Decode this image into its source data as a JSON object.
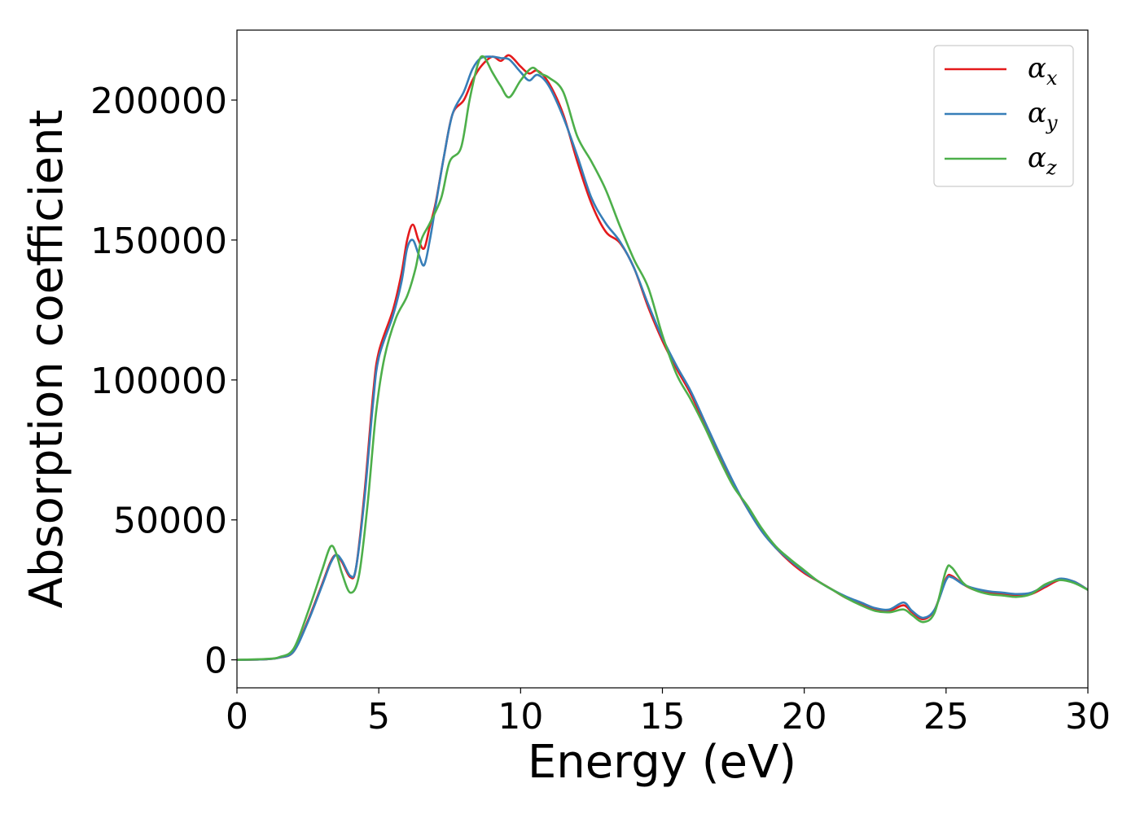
{
  "chart_data": {
    "type": "line",
    "title": "",
    "xlabel": "Energy (eV)",
    "ylabel": "Absorption coefficient",
    "xlim": [
      0,
      30
    ],
    "ylim": [
      -10000,
      225000
    ],
    "xticks": [
      0,
      5,
      10,
      15,
      20,
      25,
      30
    ],
    "xtick_labels": [
      "0",
      "5",
      "10",
      "15",
      "20",
      "25",
      "30"
    ],
    "yticks": [
      0,
      50000,
      100000,
      150000,
      200000
    ],
    "ytick_labels": [
      "0",
      "50000",
      "100000",
      "150000",
      "200000"
    ],
    "grid": false,
    "legend_position": "top-right",
    "series": [
      {
        "name": "α",
        "sub": "x",
        "color": "#e41a1c",
        "points": [
          [
            0,
            0
          ],
          [
            1,
            200
          ],
          [
            1.5,
            800
          ],
          [
            2,
            3000
          ],
          [
            2.5,
            14000
          ],
          [
            3,
            27000
          ],
          [
            3.3,
            35000
          ],
          [
            3.5,
            37500
          ],
          [
            3.7,
            35000
          ],
          [
            4.0,
            29500
          ],
          [
            4.2,
            33000
          ],
          [
            4.5,
            60000
          ],
          [
            4.8,
            95000
          ],
          [
            5.0,
            110000
          ],
          [
            5.5,
            125000
          ],
          [
            5.8,
            138000
          ],
          [
            6.0,
            150000
          ],
          [
            6.2,
            155500
          ],
          [
            6.4,
            150000
          ],
          [
            6.6,
            147000
          ],
          [
            6.8,
            155000
          ],
          [
            7.0,
            163000
          ],
          [
            7.3,
            180000
          ],
          [
            7.6,
            195000
          ],
          [
            8.0,
            200000
          ],
          [
            8.3,
            207000
          ],
          [
            8.6,
            212000
          ],
          [
            9.0,
            215500
          ],
          [
            9.3,
            214000
          ],
          [
            9.6,
            216000
          ],
          [
            10.0,
            212000
          ],
          [
            10.3,
            209500
          ],
          [
            10.6,
            210500
          ],
          [
            11.0,
            206000
          ],
          [
            11.5,
            195000
          ],
          [
            12.0,
            178000
          ],
          [
            12.5,
            163000
          ],
          [
            13.0,
            153000
          ],
          [
            13.5,
            149000
          ],
          [
            14.0,
            140000
          ],
          [
            14.5,
            126000
          ],
          [
            15.0,
            114000
          ],
          [
            15.5,
            104000
          ],
          [
            16.0,
            95000
          ],
          [
            16.5,
            84000
          ],
          [
            17.0,
            73000
          ],
          [
            17.5,
            63000
          ],
          [
            18.0,
            54000
          ],
          [
            18.5,
            46000
          ],
          [
            19.0,
            40000
          ],
          [
            19.5,
            35000
          ],
          [
            20.0,
            31000
          ],
          [
            20.5,
            28000
          ],
          [
            21.0,
            25000
          ],
          [
            21.5,
            22000
          ],
          [
            22.0,
            20000
          ],
          [
            22.5,
            18000
          ],
          [
            23.0,
            17500
          ],
          [
            23.5,
            19500
          ],
          [
            23.8,
            17000
          ],
          [
            24.2,
            14500
          ],
          [
            24.6,
            18000
          ],
          [
            25.0,
            29000
          ],
          [
            25.2,
            30000
          ],
          [
            25.6,
            27000
          ],
          [
            26.0,
            25000
          ],
          [
            26.5,
            24000
          ],
          [
            27.0,
            23500
          ],
          [
            27.5,
            23000
          ],
          [
            28.0,
            23500
          ],
          [
            28.5,
            26000
          ],
          [
            29.0,
            28500
          ],
          [
            29.5,
            28000
          ],
          [
            30.0,
            25000
          ]
        ]
      },
      {
        "name": "α",
        "sub": "y",
        "color": "#377eb8",
        "points": [
          [
            0,
            0
          ],
          [
            1,
            200
          ],
          [
            1.5,
            800
          ],
          [
            2,
            3000
          ],
          [
            2.5,
            13500
          ],
          [
            3,
            26500
          ],
          [
            3.3,
            34500
          ],
          [
            3.5,
            37500
          ],
          [
            3.7,
            35500
          ],
          [
            4.0,
            30000
          ],
          [
            4.2,
            33000
          ],
          [
            4.5,
            58000
          ],
          [
            4.8,
            92000
          ],
          [
            5.0,
            108000
          ],
          [
            5.5,
            123000
          ],
          [
            5.8,
            135000
          ],
          [
            6.0,
            147000
          ],
          [
            6.2,
            150000
          ],
          [
            6.4,
            145000
          ],
          [
            6.6,
            141000
          ],
          [
            6.8,
            150000
          ],
          [
            7.0,
            162000
          ],
          [
            7.3,
            180000
          ],
          [
            7.6,
            195000
          ],
          [
            8.0,
            203000
          ],
          [
            8.3,
            211000
          ],
          [
            8.6,
            215000
          ],
          [
            9.0,
            215500
          ],
          [
            9.3,
            215000
          ],
          [
            9.6,
            214500
          ],
          [
            10.0,
            210000
          ],
          [
            10.3,
            207000
          ],
          [
            10.6,
            209000
          ],
          [
            11.0,
            205000
          ],
          [
            11.5,
            194000
          ],
          [
            12.0,
            180000
          ],
          [
            12.5,
            165000
          ],
          [
            13.0,
            156000
          ],
          [
            13.5,
            149500
          ],
          [
            14.0,
            140000
          ],
          [
            14.5,
            127000
          ],
          [
            15.0,
            115000
          ],
          [
            15.5,
            105000
          ],
          [
            16.0,
            96000
          ],
          [
            16.5,
            85000
          ],
          [
            17.0,
            74000
          ],
          [
            17.5,
            63500
          ],
          [
            18.0,
            54000
          ],
          [
            18.5,
            46000
          ],
          [
            19.0,
            40000
          ],
          [
            19.5,
            35500
          ],
          [
            20.0,
            31500
          ],
          [
            20.5,
            28000
          ],
          [
            21.0,
            25000
          ],
          [
            21.5,
            22500
          ],
          [
            22.0,
            20500
          ],
          [
            22.5,
            18500
          ],
          [
            23.0,
            18000
          ],
          [
            23.5,
            20500
          ],
          [
            23.8,
            17500
          ],
          [
            24.2,
            15000
          ],
          [
            24.6,
            18000
          ],
          [
            25.0,
            28500
          ],
          [
            25.2,
            29500
          ],
          [
            25.6,
            27000
          ],
          [
            26.0,
            25500
          ],
          [
            26.5,
            24500
          ],
          [
            27.0,
            24000
          ],
          [
            27.5,
            23500
          ],
          [
            28.0,
            24000
          ],
          [
            28.5,
            26500
          ],
          [
            29.0,
            29000
          ],
          [
            29.5,
            28000
          ],
          [
            30.0,
            25000
          ]
        ]
      },
      {
        "name": "α",
        "sub": "z",
        "color": "#4daf4a",
        "points": [
          [
            0,
            0
          ],
          [
            1,
            300
          ],
          [
            1.5,
            1000
          ],
          [
            2,
            4000
          ],
          [
            2.5,
            17000
          ],
          [
            3,
            32000
          ],
          [
            3.3,
            40500
          ],
          [
            3.5,
            38000
          ],
          [
            3.7,
            31000
          ],
          [
            4.0,
            24000
          ],
          [
            4.3,
            30000
          ],
          [
            4.6,
            55000
          ],
          [
            4.9,
            88000
          ],
          [
            5.2,
            108000
          ],
          [
            5.6,
            122000
          ],
          [
            6.0,
            130000
          ],
          [
            6.3,
            140000
          ],
          [
            6.5,
            150000
          ],
          [
            6.8,
            156000
          ],
          [
            7.2,
            165000
          ],
          [
            7.5,
            178000
          ],
          [
            7.9,
            183000
          ],
          [
            8.2,
            200000
          ],
          [
            8.5,
            213000
          ],
          [
            8.7,
            215500
          ],
          [
            9.0,
            210000
          ],
          [
            9.3,
            205000
          ],
          [
            9.6,
            201000
          ],
          [
            10.0,
            207000
          ],
          [
            10.4,
            211500
          ],
          [
            10.7,
            209500
          ],
          [
            11.0,
            208000
          ],
          [
            11.5,
            203000
          ],
          [
            12.0,
            187000
          ],
          [
            12.5,
            178000
          ],
          [
            13.0,
            168000
          ],
          [
            13.5,
            155000
          ],
          [
            14.0,
            143000
          ],
          [
            14.5,
            133000
          ],
          [
            15.0,
            116000
          ],
          [
            15.5,
            102000
          ],
          [
            16.0,
            93000
          ],
          [
            16.5,
            83000
          ],
          [
            17.0,
            72000
          ],
          [
            17.5,
            62000
          ],
          [
            18.0,
            55000
          ],
          [
            18.5,
            47000
          ],
          [
            19.0,
            40500
          ],
          [
            19.5,
            36000
          ],
          [
            20.0,
            32000
          ],
          [
            20.5,
            28000
          ],
          [
            21.0,
            25000
          ],
          [
            21.5,
            22000
          ],
          [
            22.0,
            19500
          ],
          [
            22.5,
            17500
          ],
          [
            23.0,
            17000
          ],
          [
            23.5,
            18000
          ],
          [
            23.8,
            16000
          ],
          [
            24.2,
            13500
          ],
          [
            24.6,
            17000
          ],
          [
            25.0,
            32000
          ],
          [
            25.2,
            33000
          ],
          [
            25.6,
            27500
          ],
          [
            26.0,
            25000
          ],
          [
            26.5,
            23500
          ],
          [
            27.0,
            23000
          ],
          [
            27.5,
            22500
          ],
          [
            28.0,
            23500
          ],
          [
            28.5,
            27000
          ],
          [
            29.0,
            28500
          ],
          [
            29.5,
            27500
          ],
          [
            30.0,
            25000
          ]
        ]
      }
    ]
  }
}
